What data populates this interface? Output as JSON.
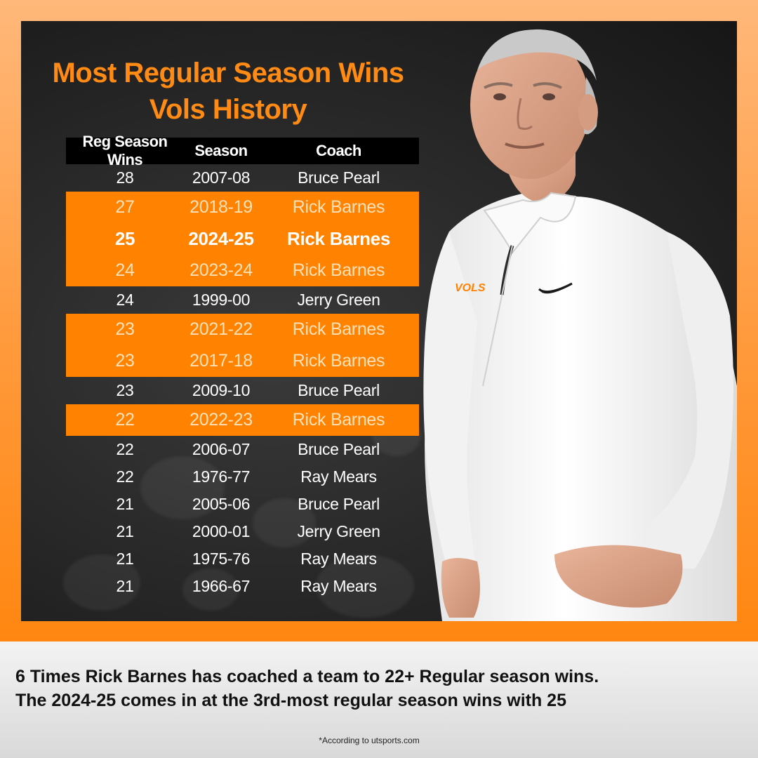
{
  "title": {
    "line1": "Most Regular Season Wins",
    "line2": "Vols History"
  },
  "table": {
    "headers": [
      "Reg Season Wins",
      "Season",
      "Coach"
    ],
    "rows": [
      {
        "wins": "28",
        "season": "2007-08",
        "coach": "Bruce Pearl"
      },
      {
        "wins": "27",
        "season": "2018-19",
        "coach": "Rick Barnes"
      },
      {
        "wins": "25",
        "season": "2024-25",
        "coach": "Rick Barnes"
      },
      {
        "wins": "24",
        "season": "2023-24",
        "coach": "Rick Barnes"
      },
      {
        "wins": "24",
        "season": "1999-00",
        "coach": "Jerry Green"
      },
      {
        "wins": "23",
        "season": "2021-22",
        "coach": "Rick Barnes"
      },
      {
        "wins": "23",
        "season": "2017-18",
        "coach": "Rick Barnes"
      },
      {
        "wins": "23",
        "season": "2009-10",
        "coach": "Bruce Pearl"
      },
      {
        "wins": "22",
        "season": "2022-23",
        "coach": "Rick Barnes"
      },
      {
        "wins": "22",
        "season": "2006-07",
        "coach": "Bruce Pearl"
      },
      {
        "wins": "22",
        "season": "1976-77",
        "coach": "Ray Mears"
      },
      {
        "wins": "21",
        "season": "2005-06",
        "coach": "Bruce Pearl"
      },
      {
        "wins": "21",
        "season": "2000-01",
        "coach": "Jerry Green"
      },
      {
        "wins": "21",
        "season": "1975-76",
        "coach": "Ray Mears"
      },
      {
        "wins": "21",
        "season": "1966-67",
        "coach": "Ray Mears"
      }
    ]
  },
  "shirt_logo": "VOLS",
  "caption": {
    "line1": "6 Times Rick Barnes has coached a team to 22+ Regular season wins.",
    "line2": "The 2024-25 comes in at the 3rd-most regular season wins with 25"
  },
  "source": "*According to utsports.com",
  "colors": {
    "orange": "#ff8200",
    "title_orange": "#ff8a14",
    "panel_dark": "#262626"
  }
}
